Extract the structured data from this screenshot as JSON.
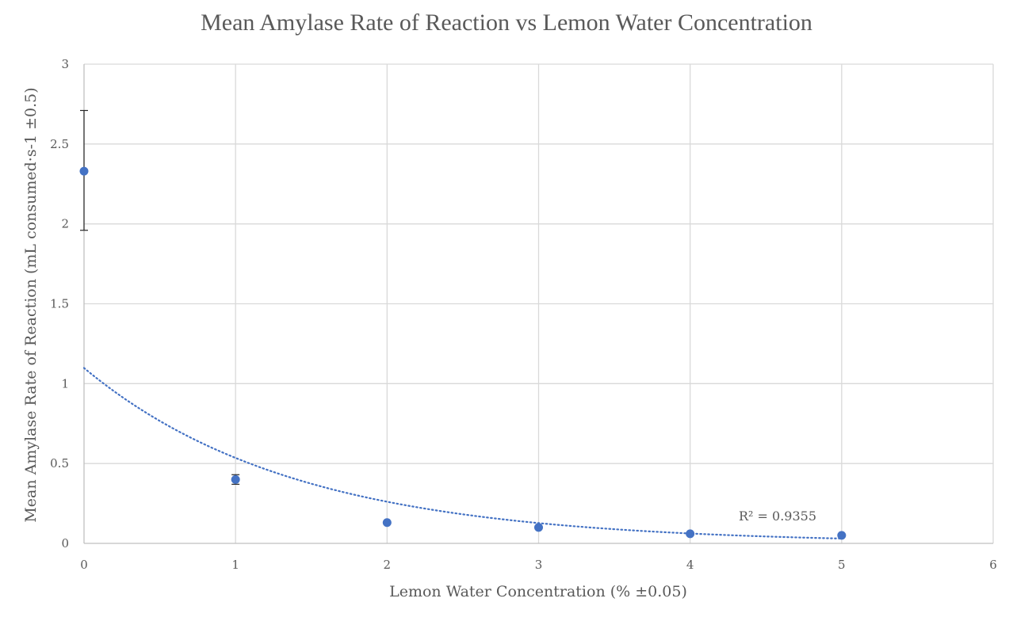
{
  "chart_data": {
    "type": "scatter",
    "title": "Mean Amylase Rate of Reaction vs Lemon Water Concentration",
    "xlabel": "Lemon Water Concentration (% ±0.05)",
    "ylabel": "Mean Amylase Rate of Reaction (mL consumed·s-1 ±0.5)",
    "xlim": [
      0,
      6
    ],
    "ylim": [
      0,
      3
    ],
    "x_ticks": [
      0,
      1,
      2,
      3,
      4,
      5,
      6
    ],
    "x_tick_labels": [
      "0",
      "1",
      "2",
      "3",
      "4",
      "5",
      "6"
    ],
    "y_ticks": [
      0,
      0.5,
      1,
      1.5,
      2,
      2.5,
      3
    ],
    "y_tick_labels": [
      "0",
      "0.5",
      "1",
      "1.5",
      "2",
      "2.5",
      "3"
    ],
    "grid": true,
    "series": [
      {
        "color": "#4472C4",
        "points": [
          {
            "x": 0,
            "y": 2.33,
            "err_low": 1.96,
            "err_high": 2.71
          },
          {
            "x": 1,
            "y": 0.4,
            "err_low": 0.37,
            "err_high": 0.43
          },
          {
            "x": 2,
            "y": 0.13
          },
          {
            "x": 3,
            "y": 0.1
          },
          {
            "x": 4,
            "y": 0.06
          },
          {
            "x": 5,
            "y": 0.05
          }
        ],
        "trendline": {
          "type": "exponential",
          "style": "dotted",
          "x_range": [
            0,
            5
          ],
          "label": "R² = 0.9355"
        }
      }
    ]
  }
}
